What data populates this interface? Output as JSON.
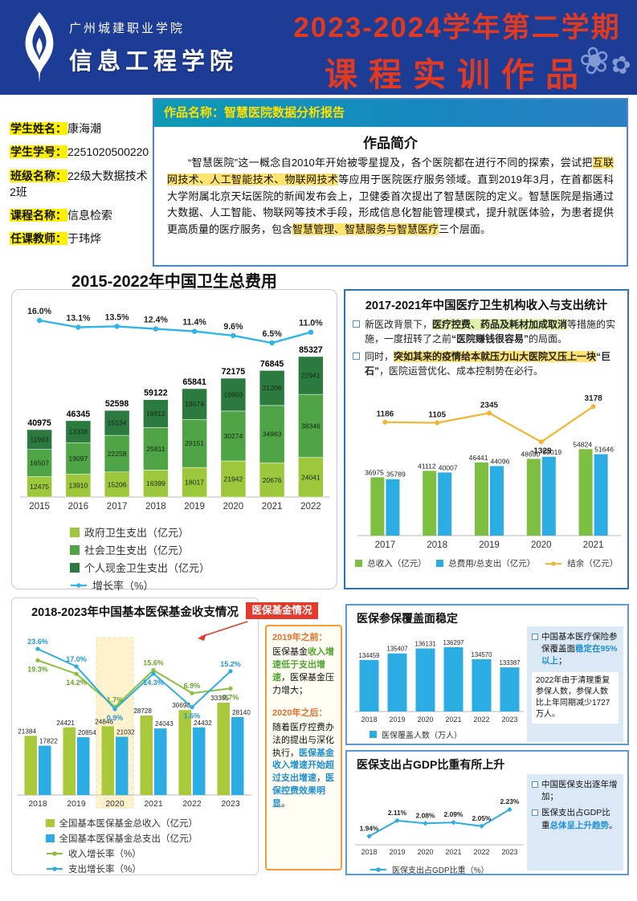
{
  "header": {
    "school": "广州城建职业学院",
    "college": "信息工程学院",
    "term": "2023-2024学年第二学期",
    "subtitle": "课程实训作品"
  },
  "student_info": [
    {
      "label": "学生姓名：",
      "value": "康海潮"
    },
    {
      "label": "学生学号：",
      "value": "2251020500220"
    },
    {
      "label": "班级名称：",
      "value": "22级大数据技术2班"
    },
    {
      "label": "课程名称：",
      "value": "信息检索"
    },
    {
      "label": "任课教师：",
      "value": "于玮烨"
    }
  ],
  "work": {
    "name": "作品名称：智慧医院数据分析报告",
    "intro_title": "作品简介",
    "intro": [
      {
        "t": "“智慧医院”这一概念自2010年开始被零星提及，各个医院都在进行不同的探索，尝试把"
      },
      {
        "t": "互联网技术、人工智能技术、物联网技术",
        "c": "hl"
      },
      {
        "t": "等应用于医院医疗服务领域。直到2019年3月，在首都医科大学附属北京天坛医院的新闻发布会上，卫健委首次提出了智慧医院的定义。智慧医院是指通过大数据、人工智能、物联网等技术手段，形成信息化智能管理模式，提升就医体验，为患者提供更高质量的医疗服务，包含"
      },
      {
        "t": "智慧管理、智慧服务与智慧医疗",
        "c": "hl"
      },
      {
        "t": "三个层面。"
      }
    ]
  },
  "fund_box": {
    "badge": "医保基金情况",
    "sections": [
      {
        "head": "2019年之前：",
        "body": [
          {
            "t": "医保基金"
          },
          {
            "t": "收入增速低于支出增速",
            "c": "green"
          },
          {
            "t": "，医保基金压力增大；"
          }
        ]
      },
      {
        "head": "2020年之后：",
        "body": [
          {
            "t": "随着医疗控费办法的提出与深化执行，"
          },
          {
            "t": "医保基金收入增速开始超过支出增速",
            "c": "blue"
          },
          {
            "t": "，"
          },
          {
            "t": "医保控费效果明显",
            "c": "blue"
          },
          {
            "t": "。"
          }
        ]
      }
    ]
  },
  "colors": {
    "header_blue": "#1d3c95",
    "title_red": "#e23a20",
    "highlight_yellow": "#fff000",
    "accent_teal": "#0f9ab4",
    "badge_red": "#e23b2e",
    "panel_blue": "#dbe9f6",
    "border_blue": "#2d74b5",
    "border_orange": "#f59d31"
  },
  "chart_data": [
    {
      "id": "health-expenditure",
      "type": "bar",
      "title": "2015-2022年中国卫生总费用",
      "categories": [
        "2015",
        "2016",
        "2017",
        "2018",
        "2019",
        "2020",
        "2021",
        "2022"
      ],
      "stacked_series": [
        {
          "name": "政府卫生支出（亿元）",
          "color": "#9dc83c",
          "values": [
            12475,
            13910,
            15206,
            16399,
            18017,
            21942,
            20676,
            24041
          ]
        },
        {
          "name": "社会卫生支出（亿元）",
          "color": "#4fa446",
          "values": [
            16507,
            19097,
            22258,
            25811,
            29151,
            30274,
            34963,
            38346
          ]
        },
        {
          "name": "个人现金卫生支出（亿元）",
          "color": "#2b7a3f",
          "values": [
            11993,
            13338,
            15134,
            16912,
            18674,
            19959,
            21206,
            22941
          ]
        }
      ],
      "totals": [
        40975,
        46345,
        52598,
        59122,
        65841,
        72175,
        76845,
        85327
      ],
      "line_series": {
        "name": "增长率（%）",
        "color": "#2fb4e9",
        "values": [
          16.0,
          13.1,
          13.5,
          12.4,
          11.4,
          9.6,
          6.5,
          11.0
        ]
      },
      "layout": {
        "legend_position": "bottom",
        "value_labels": true
      }
    },
    {
      "id": "hospital-income-expense",
      "type": "bar",
      "title": "2017-2021年中国医疗卫生机构收入与支出统计",
      "notes": [
        [
          {
            "t": "新医改背景下，"
          },
          {
            "t": "医疗控费、药品及耗材加成取消",
            "c": "hl2"
          },
          {
            "t": "等措施的实施，一度扭转了之前"
          },
          {
            "t": "“医院赚钱很容易”",
            "c": "b"
          },
          {
            "t": "的局面。"
          }
        ],
        [
          {
            "t": "同时，"
          },
          {
            "t": "突如其来的疫情给本就压力山大医院又压上一块",
            "c": "hlb"
          },
          {
            "t": "“巨石”",
            "c": "b"
          },
          {
            "t": "，医院运营优化、成本控制势在必行。"
          }
        ]
      ],
      "categories": [
        "2017",
        "2018",
        "2019",
        "2020",
        "2021"
      ],
      "series": [
        {
          "name": "总收入（亿元）",
          "color": "#7cbf41",
          "values": [
            36975,
            41112,
            46441,
            48690,
            54824
          ]
        },
        {
          "name": "总费用/总支出（亿元）",
          "color": "#2bace2",
          "values": [
            35789,
            40007,
            44096,
            50019,
            51646
          ]
        }
      ],
      "line_series": {
        "name": "结余（亿元）",
        "color": "#f2b532",
        "values": [
          1186,
          1105,
          2345,
          -1329,
          3178
        ]
      },
      "layout": {
        "legend_position": "bottom",
        "value_labels": true
      }
    },
    {
      "id": "medical-insurance-fund",
      "type": "bar",
      "title": "2018-2023年中国基本医保基金收支情况",
      "categories": [
        "2018",
        "2019",
        "2020",
        "2021",
        "2022",
        "2023"
      ],
      "series": [
        {
          "name": "全国基本医保基金总收入（亿元）",
          "color": "#a9c93c",
          "values": [
            21384,
            24421,
            24846,
            28728,
            30698,
            33355
          ]
        },
        {
          "name": "全国基本医保基金总支出（亿元）",
          "color": "#2bace2",
          "values": [
            17822,
            20854,
            21032,
            24043,
            24432,
            28140
          ]
        }
      ],
      "line_series": [
        {
          "name": "收入增长率（%）",
          "color": "#8cbf3a",
          "values": [
            19.3,
            14.2,
            1.7,
            15.6,
            6.9,
            8.7
          ]
        },
        {
          "name": "支出增长率（%）",
          "color": "#2bace2",
          "values": [
            23.6,
            17.0,
            0.9,
            14.3,
            1.6,
            15.2
          ]
        }
      ],
      "highlight_year": "2020",
      "layout": {
        "legend_position": "bottom",
        "value_labels": true
      }
    },
    {
      "id": "insured-population",
      "type": "bar",
      "title": "医保参保覆盖面稳定",
      "categories": [
        "2018",
        "2019",
        "2020",
        "2021",
        "2022",
        "2023"
      ],
      "series": [
        {
          "name": "医保覆盖人数（万人）",
          "color": "#2bace2",
          "values": [
            134459,
            135407,
            136131,
            136297,
            134570,
            133387
          ]
        }
      ],
      "side_notes": {
        "bullet": [
          {
            "t": "中国基本医疗保险参保覆盖面"
          },
          {
            "t": "稳定在95%以上",
            "c": "blue"
          },
          {
            "t": "；"
          }
        ],
        "note": "2022年由于清理重复参保人数，参保人数比上年同期减少1727万人。"
      },
      "layout": {
        "legend_position": "bottom",
        "value_labels": true,
        "ylim": [
          127000,
          137000
        ]
      }
    },
    {
      "id": "gdp-share",
      "type": "line",
      "title": "医保支出占GDP比重有所上升",
      "categories": [
        "2018",
        "2019",
        "2020",
        "2021",
        "2022",
        "2023"
      ],
      "line_series": [
        {
          "name": "医保支出占GDP比重（%）",
          "color": "#2bace2",
          "values": [
            1.94,
            2.11,
            2.08,
            2.09,
            2.05,
            2.23
          ]
        }
      ],
      "side_notes": {
        "bullets": [
          [
            {
              "t": "中国医保支出逐年增加；"
            }
          ],
          [
            {
              "t": "医保支出占GDP比重"
            },
            {
              "t": "总体呈上升趋势",
              "c": "blue"
            },
            {
              "t": "。"
            }
          ]
        ]
      },
      "layout": {
        "legend_position": "bottom",
        "value_labels": true
      }
    }
  ]
}
